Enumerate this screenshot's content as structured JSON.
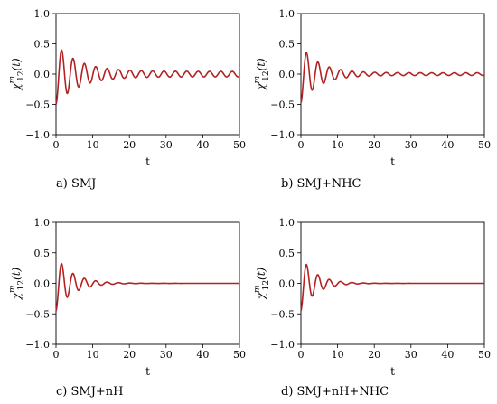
{
  "chart_data": [
    {
      "type": "line",
      "caption": "a) SMJ",
      "xlabel": "t",
      "ylabel_base": "χ",
      "ylabel_sup": "m",
      "ylabel_sub": "12",
      "ylabel_arg": "(t)",
      "xlim": [
        0,
        50
      ],
      "ylim": [
        -1.0,
        1.0
      ],
      "xticks": [
        0,
        10,
        20,
        30,
        40,
        50
      ],
      "yticks": [
        -1.0,
        -0.5,
        0.0,
        0.5,
        1.0
      ],
      "ytick_labels": [
        "−1.0",
        "−0.5",
        "0.0",
        "0.5",
        "1.0"
      ],
      "series": [
        {
          "color": "#b22222",
          "amplitude": 0.45,
          "period": 3.1,
          "decay": 0.16,
          "floor": 0.045,
          "phase": -1.571
        }
      ]
    },
    {
      "type": "line",
      "caption": "b) SMJ+NHC",
      "xlabel": "t",
      "ylabel_base": "χ",
      "ylabel_sup": "m",
      "ylabel_sub": "12",
      "ylabel_arg": "(t)",
      "xlim": [
        0,
        50
      ],
      "ylim": [
        -1.0,
        1.0
      ],
      "xticks": [
        0,
        10,
        20,
        30,
        40,
        50
      ],
      "yticks": [
        -1.0,
        -0.5,
        0.0,
        0.5,
        1.0
      ],
      "ytick_labels": [
        "−1.0",
        "−0.5",
        "0.0",
        "0.5",
        "1.0"
      ],
      "series": [
        {
          "color": "#b22222",
          "amplitude": 0.45,
          "period": 3.1,
          "decay": 0.2,
          "floor": 0.022,
          "phase": -1.571
        }
      ]
    },
    {
      "type": "line",
      "caption": "c) SMJ+nH",
      "xlabel": "t",
      "ylabel_base": "χ",
      "ylabel_sup": "m",
      "ylabel_sub": "12",
      "ylabel_arg": "(t)",
      "xlim": [
        0,
        50
      ],
      "ylim": [
        -1.0,
        1.0
      ],
      "xticks": [
        0,
        10,
        20,
        30,
        40,
        50
      ],
      "yticks": [
        -1.0,
        -0.5,
        0.0,
        0.5,
        1.0
      ],
      "ytick_labels": [
        "−1.0",
        "−0.5",
        "0.0",
        "0.5",
        "1.0"
      ],
      "series": [
        {
          "color": "#b22222",
          "amplitude": 0.45,
          "period": 3.1,
          "decay": 0.22,
          "floor": 0.0,
          "phase": -1.571
        }
      ]
    },
    {
      "type": "line",
      "caption": "d) SMJ+nH+NHC",
      "xlabel": "t",
      "ylabel_base": "χ",
      "ylabel_sup": "m",
      "ylabel_sub": "12",
      "ylabel_arg": "(t)",
      "xlim": [
        0,
        50
      ],
      "ylim": [
        -1.0,
        1.0
      ],
      "xticks": [
        0,
        10,
        20,
        30,
        40,
        50
      ],
      "yticks": [
        -1.0,
        -0.5,
        0.0,
        0.5,
        1.0
      ],
      "ytick_labels": [
        "−1.0",
        "−0.5",
        "0.0",
        "0.5",
        "1.0"
      ],
      "series": [
        {
          "color": "#b22222",
          "amplitude": 0.45,
          "period": 3.1,
          "decay": 0.25,
          "floor": 0.0,
          "phase": -1.571
        }
      ]
    }
  ]
}
